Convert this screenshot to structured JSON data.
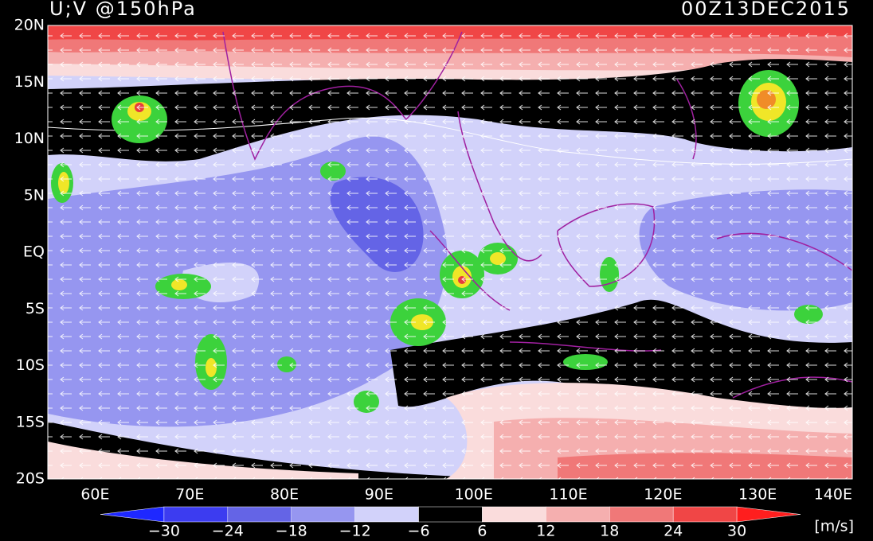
{
  "header": {
    "title": "U;V @150hPa",
    "date": "00Z13DEC2015"
  },
  "map": {
    "lat_labels": [
      "20N",
      "15N",
      "10N",
      "5N",
      "EQ",
      "5S",
      "10S",
      "15S",
      "20S"
    ],
    "lon_labels": [
      "60E",
      "70E",
      "80E",
      "90E",
      "100E",
      "110E",
      "120E",
      "130E",
      "140E"
    ]
  },
  "colorbar": {
    "labels": [
      "−30",
      "−24",
      "−18",
      "−12",
      "−6",
      "6",
      "12",
      "18",
      "24",
      "30"
    ],
    "colors": [
      "#1e28ff",
      "#3c3cf0",
      "#6464e6",
      "#9696f0",
      "#d2d2fa",
      "#000000",
      "#fadcdc",
      "#f5afaf",
      "#f07878",
      "#f04646",
      "#ff1e1e"
    ],
    "unit": "[m/s]"
  }
}
